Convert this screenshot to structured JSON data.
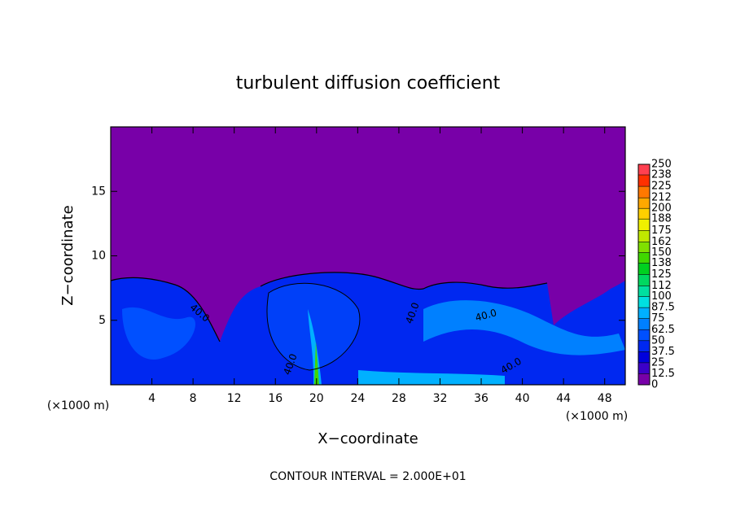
{
  "chart_data": {
    "type": "contour",
    "title": "turbulent diffusion coefficient",
    "x_label": "X−coordinate",
    "y_label": "Z−coordinate",
    "x_unit_left": "(×1000 m)",
    "x_unit_right": "(×1000 m)",
    "xlim": [
      0,
      50
    ],
    "ylim": [
      0,
      20
    ],
    "xticks": [
      4,
      8,
      12,
      16,
      20,
      24,
      28,
      32,
      36,
      40,
      44,
      48
    ],
    "yticks": [
      5,
      10,
      15
    ],
    "contour_labels": [
      "40.0",
      "40.0",
      "40.0",
      "40.0",
      "40.0"
    ],
    "footnote": "CONTOUR INTERVAL = 2.000E+01",
    "colorbar": {
      "levels": [
        0,
        12.5,
        25,
        37.5,
        50,
        62.5,
        75,
        87.5,
        100,
        112,
        125,
        138,
        150,
        162,
        175,
        188,
        200,
        212,
        225,
        238,
        250
      ],
      "colors": [
        "#7800a8",
        "#3c00c8",
        "#0000dc",
        "#0028f0",
        "#0050ff",
        "#0080ff",
        "#00b0ff",
        "#00e0e0",
        "#00e0a0",
        "#00d860",
        "#00d020",
        "#40d800",
        "#80e000",
        "#c0e800",
        "#f0f000",
        "#ffd000",
        "#ffa800",
        "#ff7800",
        "#ff3000",
        "#ff4050"
      ]
    }
  }
}
